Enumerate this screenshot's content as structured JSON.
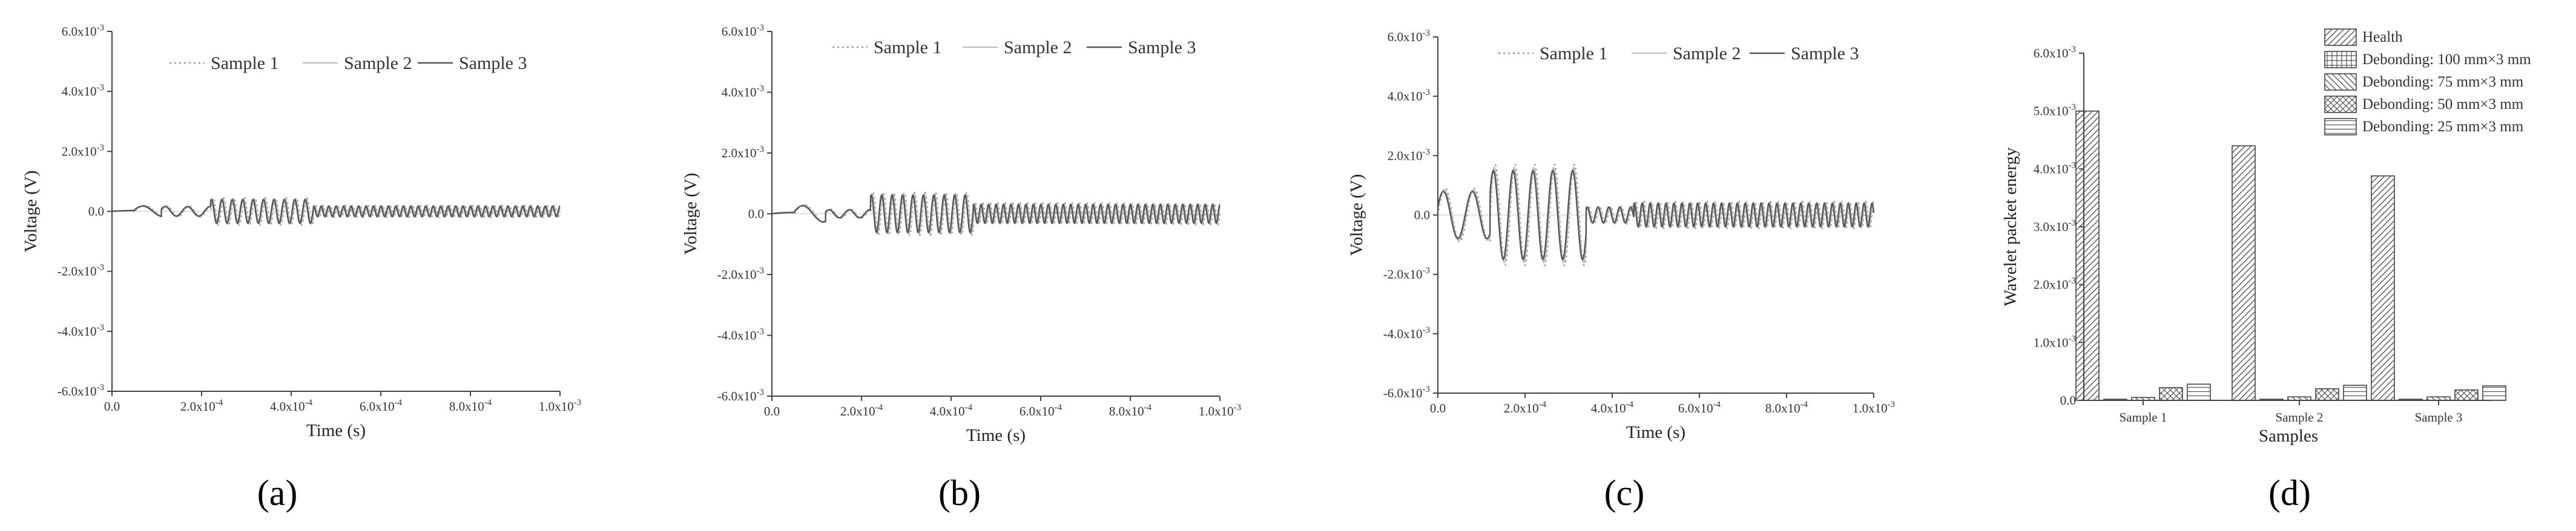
{
  "chart_data": [
    {
      "type": "line",
      "panel_label": "(a)",
      "xlabel": "Time (s)",
      "ylabel": "Voltage (V)",
      "xlim": [
        0,
        0.001
      ],
      "ylim": [
        -0.006,
        0.006
      ],
      "x_ticks": [
        "0.0",
        "2.0x10-4",
        "4.0x10-4",
        "6.0x10-4",
        "8.0x10-4",
        "1.0x10-3"
      ],
      "y_ticks": [
        "-6.0x10-3",
        "-4.0x10-3",
        "-2.0x10-3",
        "0.0",
        "2.0x10-3",
        "4.0x10-3",
        "6.0x10-3"
      ],
      "legend": [
        "Sample 1",
        "Sample 2",
        "Sample 3"
      ],
      "waveform": {
        "segments": [
          {
            "t0": 0,
            "t1": 5e-05,
            "amp": 3e-05,
            "freq": 5000
          },
          {
            "t0": 5e-05,
            "t1": 0.00011,
            "amp": 0.0002,
            "freq": 11000
          },
          {
            "t0": 0.00011,
            "t1": 0.00022,
            "amp": 0.00018,
            "freq": 20000
          },
          {
            "t0": 0.00022,
            "t1": 0.00045,
            "amp": 0.00045,
            "freq": 43000
          },
          {
            "t0": 0.00045,
            "t1": 0.001,
            "amp": 0.0002,
            "freq": 60000
          }
        ]
      }
    },
    {
      "type": "line",
      "panel_label": "(b)",
      "xlabel": "Time (s)",
      "ylabel": "Voltage (V)",
      "xlim": [
        0,
        0.001
      ],
      "ylim": [
        -0.006,
        0.006
      ],
      "x_ticks": [
        "0.0",
        "2.0x10-4",
        "4.0x10-4",
        "6.0x10-4",
        "8.0x10-4",
        "1.0x10-3"
      ],
      "y_ticks": [
        "-6.0x10-3",
        "-4.0x10-3",
        "-2.0x10-3",
        "0.0",
        "2.0x10-3",
        "4.0x10-3",
        "6.0x10-3"
      ],
      "legend": [
        "Sample 1",
        "Sample 2",
        "Sample 3"
      ],
      "waveform": {
        "segments": [
          {
            "t0": 0,
            "t1": 5e-05,
            "amp": 5e-05,
            "freq": 5000
          },
          {
            "t0": 5e-05,
            "t1": 0.00012,
            "amp": 0.0003,
            "freq": 11000
          },
          {
            "t0": 0.00012,
            "t1": 0.00022,
            "amp": 0.00015,
            "freq": 22000
          },
          {
            "t0": 0.00022,
            "t1": 0.00045,
            "amp": 0.0007,
            "freq": 43000
          },
          {
            "t0": 0.00045,
            "t1": 0.001,
            "amp": 0.00035,
            "freq": 60000
          }
        ]
      }
    },
    {
      "type": "line",
      "panel_label": "(c)",
      "xlabel": "Time (s)",
      "ylabel": "Voltage (V)",
      "xlim": [
        0,
        0.001
      ],
      "ylim": [
        -0.006,
        0.006
      ],
      "x_ticks": [
        "0.0",
        "2.0x10-4",
        "4.0x10-4",
        "6.0x10-4",
        "8.0x10-4",
        "1.0x10-3"
      ],
      "y_ticks": [
        "-6.0x10-3",
        "-4.0x10-3",
        "-2.0x10-3",
        "0.0",
        "2.0x10-3",
        "4.0x10-3",
        "6.0x10-3"
      ],
      "legend": [
        "Sample 1",
        "Sample 2",
        "Sample 3"
      ],
      "waveform": {
        "segments": [
          {
            "t0": 0,
            "t1": 0.00012,
            "amp": 0.0009,
            "freq": 15000
          },
          {
            "t0": 0.00012,
            "t1": 0.00034,
            "amp": 0.0017,
            "freq": 22000
          },
          {
            "t0": 0.00034,
            "t1": 0.00045,
            "amp": 0.0003,
            "freq": 40000
          },
          {
            "t0": 0.00045,
            "t1": 0.001,
            "amp": 0.00045,
            "freq": 55000
          }
        ]
      }
    },
    {
      "type": "bar",
      "panel_label": "(d)",
      "xlabel": "Samples",
      "ylabel": "Wavelet packet energy",
      "categories": [
        "Sample 1",
        "Sample 2",
        "Sample 3"
      ],
      "ylim": [
        0,
        0.006
      ],
      "y_ticks": [
        "0.0",
        "1.0x10-3",
        "2.0x10-3",
        "3.0x10-3",
        "4.0x10-3",
        "5.0x10-3",
        "6.0x10-3"
      ],
      "legend_placement": "top-right",
      "series": [
        {
          "name": "Health",
          "pattern": "diag-right",
          "values": [
            0.005,
            0.0044,
            0.00388
          ]
        },
        {
          "name": "Debonding: 100 mm×3 mm",
          "pattern": "grid",
          "values": [
            2e-05,
            2e-05,
            2e-05
          ]
        },
        {
          "name": "Debonding: 75 mm×3 mm",
          "pattern": "diag-left",
          "values": [
            5e-05,
            6e-05,
            6e-05
          ]
        },
        {
          "name": "Debonding: 50 mm×3 mm",
          "pattern": "crosshatch",
          "values": [
            0.00022,
            0.0002,
            0.00018
          ]
        },
        {
          "name": "Debonding: 25 mm×3 mm",
          "pattern": "horizontal",
          "values": [
            0.00028,
            0.00026,
            0.00025
          ]
        }
      ]
    }
  ]
}
